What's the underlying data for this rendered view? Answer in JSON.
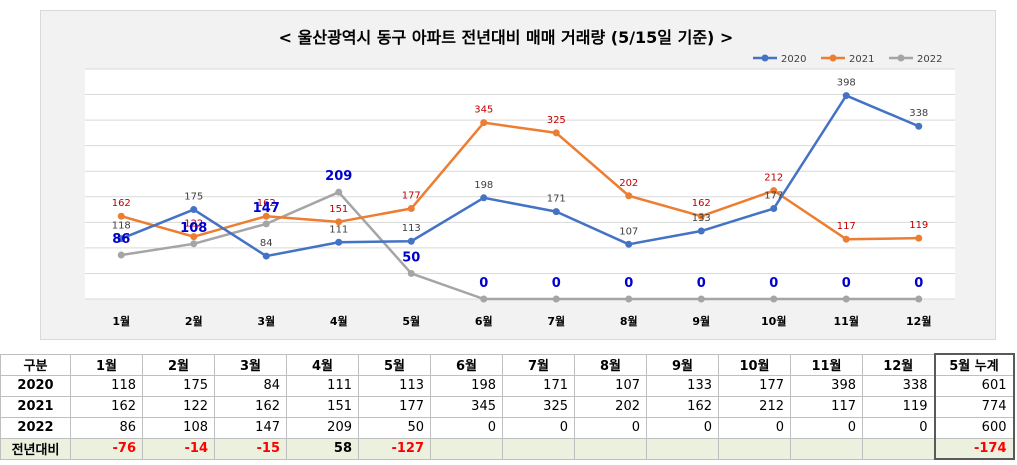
{
  "chart_data": {
    "type": "line",
    "title": "< 울산광역시 동구  아파트 전년대비 매매 거래량 (5/15일 기준) >",
    "categories": [
      "1월",
      "2월",
      "3월",
      "4월",
      "5월",
      "6월",
      "7월",
      "8월",
      "9월",
      "10월",
      "11월",
      "12월"
    ],
    "series": [
      {
        "name": "2020",
        "color": "#4472c4",
        "values": [
          118,
          175,
          84,
          111,
          113,
          198,
          171,
          107,
          133,
          177,
          398,
          338
        ]
      },
      {
        "name": "2021",
        "color": "#ed7d31",
        "values": [
          162,
          122,
          162,
          151,
          177,
          345,
          325,
          202,
          162,
          212,
          117,
          119
        ]
      },
      {
        "name": "2022",
        "color": "#a5a5a5",
        "values": [
          86,
          108,
          147,
          209,
          50,
          0,
          0,
          0,
          0,
          0,
          0,
          0
        ]
      }
    ],
    "ylim": [
      0,
      450
    ],
    "grid": true,
    "legend": "top-right"
  },
  "table": {
    "headers": [
      "구분",
      "1월",
      "2월",
      "3월",
      "4월",
      "5월",
      "6월",
      "7월",
      "8월",
      "9월",
      "10월",
      "11월",
      "12월",
      "5월 누계"
    ],
    "rows": [
      {
        "label": "2020",
        "values": [
          "118",
          "175",
          "84",
          "111",
          "113",
          "198",
          "171",
          "107",
          "133",
          "177",
          "398",
          "338"
        ],
        "total": "601"
      },
      {
        "label": "2021",
        "values": [
          "162",
          "122",
          "162",
          "151",
          "177",
          "345",
          "325",
          "202",
          "162",
          "212",
          "117",
          "119"
        ],
        "total": "774"
      },
      {
        "label": "2022",
        "values": [
          "86",
          "108",
          "147",
          "209",
          "50",
          "0",
          "0",
          "0",
          "0",
          "0",
          "0",
          "0"
        ],
        "total": "600"
      }
    ],
    "diff": {
      "label": "전년대비",
      "values": [
        "-76",
        "-14",
        "-15",
        "58",
        "-127",
        "",
        "",
        "",
        "",
        "",
        "",
        ""
      ],
      "total": "-174"
    }
  }
}
